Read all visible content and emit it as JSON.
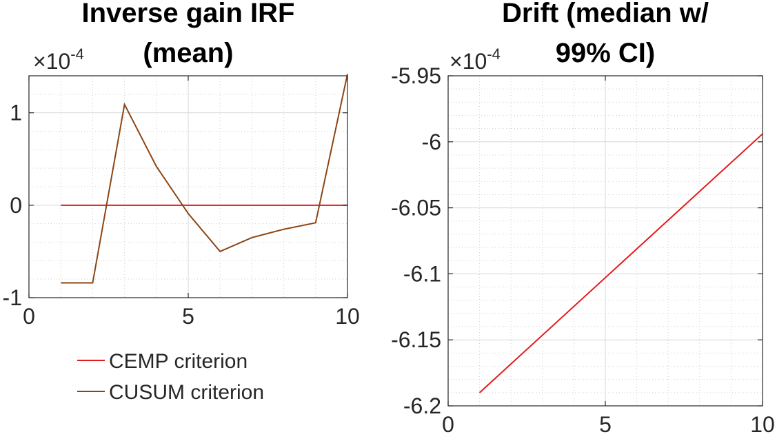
{
  "chart_data": [
    {
      "type": "line",
      "title_lines": [
        "Inverse gain IRF",
        "(mean)"
      ],
      "xlim": [
        0,
        10
      ],
      "ylim": [
        -1,
        1.4
      ],
      "x_ticks": [
        0,
        5,
        10
      ],
      "y_ticks": [
        -1,
        0,
        1
      ],
      "x_tick_labels": [
        "0",
        "5",
        "10"
      ],
      "y_tick_labels": [
        "-1",
        "0",
        "1"
      ],
      "y_exponent": {
        "base": "×10",
        "power": "-4"
      },
      "grid": true,
      "series": [
        {
          "name": "CEMP criterion",
          "color": "#e41a1c",
          "x": [
            1,
            2,
            3,
            4,
            5,
            6,
            7,
            8,
            9,
            10
          ],
          "y": [
            0,
            0,
            0,
            0,
            0,
            0,
            0,
            0,
            0,
            0
          ]
        },
        {
          "name": "CUSUM criterion",
          "color": "#8b4513",
          "x": [
            1,
            2,
            3,
            4,
            5,
            6,
            7,
            8,
            9,
            10
          ],
          "y": [
            -0.84,
            -0.84,
            1.09,
            0.42,
            -0.09,
            -0.5,
            -0.35,
            -0.26,
            -0.19,
            1.42
          ]
        }
      ],
      "legend": {
        "placement": "below-plot",
        "entries": [
          "CEMP criterion",
          "CUSUM criterion"
        ]
      }
    },
    {
      "type": "line",
      "title_lines": [
        "Drift (median w/",
        "99% CI)"
      ],
      "xlim": [
        0,
        10
      ],
      "ylim": [
        -6.2,
        -5.95
      ],
      "x_ticks": [
        0,
        5,
        10
      ],
      "y_ticks": [
        -6.2,
        -6.15,
        -6.1,
        -6.05,
        -6,
        -5.95
      ],
      "x_tick_labels": [
        "0",
        "5",
        "10"
      ],
      "y_tick_labels": [
        "-6.2",
        "-6.15",
        "-6.1",
        "-6.05",
        "-6",
        "-5.95"
      ],
      "y_exponent": {
        "base": "×10",
        "power": "-4"
      },
      "grid": true,
      "series": [
        {
          "color": "#e41a1c",
          "x": [
            1,
            10
          ],
          "y": [
            -6.19,
            -5.994
          ]
        }
      ]
    }
  ]
}
